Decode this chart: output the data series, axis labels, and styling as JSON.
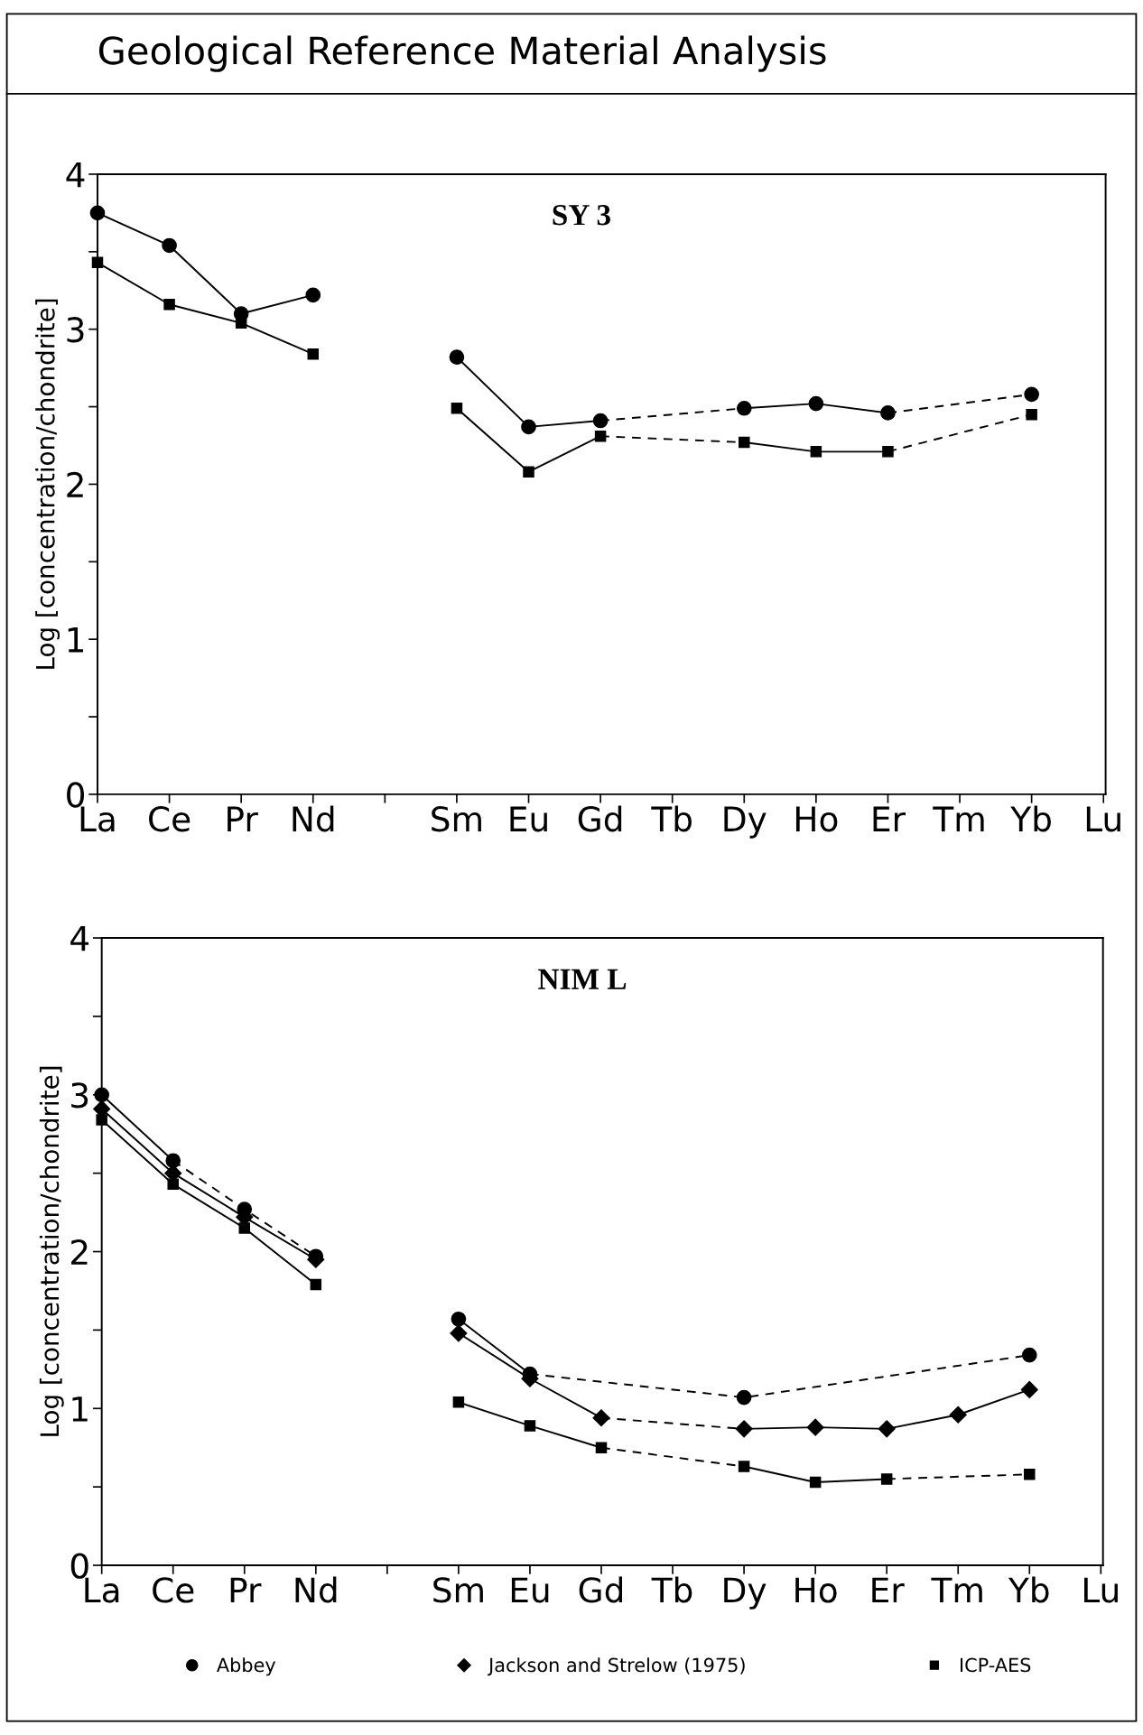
{
  "chart_data": [
    {
      "type": "line",
      "title": "Geological Reference Material Analysis",
      "subtitle": "SY 3",
      "ylabel": "Log [concentration/chondrite]",
      "categories": [
        "La",
        "Ce",
        "Pr",
        "Nd",
        null,
        "Sm",
        "Eu",
        "Gd",
        "Tb",
        "Dy",
        "Ho",
        "Er",
        "Tm",
        "Yb",
        "Lu"
      ],
      "ylim": [
        0,
        4
      ],
      "yticks": [
        0,
        {
          "value": 0.5,
          "label": null
        },
        1,
        {
          "value": 1.5,
          "label": null
        },
        2,
        {
          "value": 2.5,
          "label": null
        },
        3,
        {
          "value": 3.5,
          "label": null
        },
        4
      ],
      "grid": false,
      "series": [
        {
          "type": "scatter",
          "marker": "circle",
          "color": "#000000",
          "values": [
            3.75,
            3.54,
            3.1,
            3.22,
            null,
            2.82,
            2.37,
            2.41,
            null,
            2.49,
            2.52,
            2.46,
            null,
            2.58,
            null
          ]
        },
        {
          "type": "scatter",
          "marker": "square",
          "color": "#000000",
          "values": [
            3.43,
            3.16,
            3.04,
            2.84,
            null,
            2.49,
            2.08,
            2.31,
            null,
            2.27,
            2.21,
            2.21,
            null,
            2.45,
            null
          ]
        },
        {
          "marker": "none",
          "line_style": "solid",
          "color": "#000000",
          "values": [
            3.75,
            3.54,
            3.1,
            3.22,
            null,
            null,
            null,
            null,
            null,
            null,
            null,
            null,
            null,
            null,
            null
          ]
        },
        {
          "marker": "none",
          "line_style": "solid",
          "color": "#000000",
          "values": [
            null,
            null,
            null,
            null,
            null,
            2.82,
            2.37,
            2.41,
            null,
            null,
            null,
            null,
            null,
            null,
            null
          ]
        },
        {
          "marker": "none",
          "line_style": "dashed",
          "color": "#000000",
          "values": [
            null,
            null,
            null,
            null,
            null,
            null,
            null,
            2.41,
            null,
            2.49,
            null,
            null,
            null,
            null,
            null
          ]
        },
        {
          "marker": "none",
          "line_style": "solid",
          "color": "#000000",
          "values": [
            null,
            null,
            null,
            null,
            null,
            null,
            null,
            null,
            null,
            2.49,
            2.52,
            2.46,
            null,
            null,
            null
          ]
        },
        {
          "marker": "none",
          "line_style": "dashed",
          "color": "#000000",
          "values": [
            null,
            null,
            null,
            null,
            null,
            null,
            null,
            null,
            null,
            null,
            null,
            2.46,
            null,
            2.58,
            null
          ]
        },
        {
          "marker": "none",
          "line_style": "solid",
          "color": "#000000",
          "values": [
            3.43,
            3.16,
            3.04,
            2.84,
            null,
            null,
            null,
            null,
            null,
            null,
            null,
            null,
            null,
            null,
            null
          ]
        },
        {
          "marker": "none",
          "line_style": "solid",
          "color": "#000000",
          "values": [
            null,
            null,
            null,
            null,
            null,
            2.49,
            2.08,
            2.31,
            null,
            null,
            null,
            null,
            null,
            null,
            null
          ]
        },
        {
          "marker": "none",
          "line_style": "dashed",
          "color": "#000000",
          "values": [
            null,
            null,
            null,
            null,
            null,
            null,
            null,
            2.31,
            null,
            2.27,
            null,
            null,
            null,
            null,
            null
          ]
        },
        {
          "marker": "none",
          "line_style": "solid",
          "color": "#000000",
          "values": [
            null,
            null,
            null,
            null,
            null,
            null,
            null,
            null,
            null,
            2.27,
            2.21,
            2.21,
            null,
            null,
            null
          ]
        },
        {
          "marker": "none",
          "line_style": "dashed",
          "color": "#000000",
          "values": [
            null,
            null,
            null,
            null,
            null,
            null,
            null,
            null,
            null,
            null,
            null,
            2.21,
            null,
            2.45,
            null
          ]
        }
      ]
    },
    {
      "type": "line",
      "subtitle": "NIM L",
      "ylabel": "Log [concentration/chondrite]",
      "legend": "bottom",
      "categories": [
        "La",
        "Ce",
        "Pr",
        "Nd",
        null,
        "Sm",
        "Eu",
        "Gd",
        "Tb",
        "Dy",
        "Ho",
        "Er",
        "Tm",
        "Yb",
        "Lu"
      ],
      "ylim": [
        0,
        4
      ],
      "yticks": [
        0,
        {
          "value": 0.5,
          "label": null
        },
        1,
        {
          "value": 1.5,
          "label": null
        },
        2,
        {
          "value": 2.5,
          "label": null
        },
        3,
        {
          "value": 3.5,
          "label": null
        },
        4
      ],
      "grid": false,
      "series": [
        {
          "name": "Abbey",
          "type": "scatter",
          "marker": "circle",
          "color": "#000000",
          "values": [
            3.0,
            2.58,
            2.27,
            1.97,
            null,
            1.57,
            1.22,
            null,
            null,
            1.07,
            null,
            null,
            null,
            1.34,
            null
          ]
        },
        {
          "name": "Jackson and Strelow (1975)",
          "type": "scatter",
          "marker": "diamond",
          "color": "#000000",
          "values": [
            2.91,
            2.5,
            2.22,
            1.95,
            null,
            1.48,
            1.19,
            0.94,
            null,
            0.87,
            0.88,
            0.87,
            0.96,
            1.12,
            null
          ]
        },
        {
          "name": "ICP-AES",
          "type": "scatter",
          "marker": "square",
          "color": "#000000",
          "values": [
            2.84,
            2.43,
            2.15,
            1.79,
            null,
            1.04,
            0.89,
            0.75,
            null,
            0.63,
            0.53,
            0.55,
            null,
            0.58,
            null
          ]
        },
        {
          "marker": "none",
          "line_style": "solid",
          "color": "#000000",
          "values": [
            3.0,
            2.58,
            null,
            null,
            null,
            null,
            null,
            null,
            null,
            null,
            null,
            null,
            null,
            null,
            null
          ]
        },
        {
          "marker": "none",
          "line_style": "dashed",
          "color": "#000000",
          "values": [
            null,
            2.58,
            2.27,
            1.97,
            null,
            null,
            null,
            null,
            null,
            null,
            null,
            null,
            null,
            null,
            null
          ]
        },
        {
          "marker": "none",
          "line_style": "solid",
          "color": "#000000",
          "values": [
            null,
            null,
            null,
            null,
            null,
            1.57,
            1.22,
            null,
            null,
            null,
            null,
            null,
            null,
            null,
            null
          ]
        },
        {
          "marker": "none",
          "line_style": "dashed",
          "color": "#000000",
          "values": [
            null,
            null,
            null,
            null,
            null,
            null,
            1.22,
            null,
            null,
            1.07,
            null,
            null,
            null,
            1.34,
            null
          ]
        },
        {
          "marker": "none",
          "line_style": "solid",
          "color": "#000000",
          "values": [
            2.91,
            2.5,
            2.22,
            1.95,
            null,
            null,
            null,
            null,
            null,
            null,
            null,
            null,
            null,
            null,
            null
          ]
        },
        {
          "marker": "none",
          "line_style": "solid",
          "color": "#000000",
          "values": [
            null,
            null,
            null,
            null,
            null,
            1.48,
            1.19,
            0.94,
            null,
            null,
            null,
            null,
            null,
            null,
            null
          ]
        },
        {
          "marker": "none",
          "line_style": "dashed",
          "color": "#000000",
          "values": [
            null,
            null,
            null,
            null,
            null,
            null,
            null,
            0.94,
            null,
            0.87,
            null,
            null,
            null,
            null,
            null
          ]
        },
        {
          "marker": "none",
          "line_style": "solid",
          "color": "#000000",
          "values": [
            null,
            null,
            null,
            null,
            null,
            null,
            null,
            null,
            null,
            0.87,
            0.88,
            0.87,
            0.96,
            1.12,
            null
          ]
        },
        {
          "marker": "none",
          "line_style": "solid",
          "color": "#000000",
          "values": [
            2.84,
            2.43,
            2.15,
            1.79,
            null,
            null,
            null,
            null,
            null,
            null,
            null,
            null,
            null,
            null,
            null
          ]
        },
        {
          "marker": "none",
          "line_style": "solid",
          "color": "#000000",
          "values": [
            null,
            null,
            null,
            null,
            null,
            1.04,
            0.89,
            0.75,
            null,
            null,
            null,
            null,
            null,
            null,
            null
          ]
        },
        {
          "marker": "none",
          "line_style": "dashed",
          "color": "#000000",
          "values": [
            null,
            null,
            null,
            null,
            null,
            null,
            null,
            0.75,
            null,
            0.63,
            null,
            null,
            null,
            null,
            null
          ]
        },
        {
          "marker": "none",
          "line_style": "solid",
          "color": "#000000",
          "values": [
            null,
            null,
            null,
            null,
            null,
            null,
            null,
            null,
            null,
            0.63,
            0.53,
            0.55,
            null,
            null,
            null
          ]
        },
        {
          "marker": "none",
          "line_style": "dashed",
          "color": "#000000",
          "values": [
            null,
            null,
            null,
            null,
            null,
            null,
            null,
            null,
            null,
            null,
            null,
            0.55,
            null,
            0.58,
            null
          ]
        }
      ]
    }
  ]
}
